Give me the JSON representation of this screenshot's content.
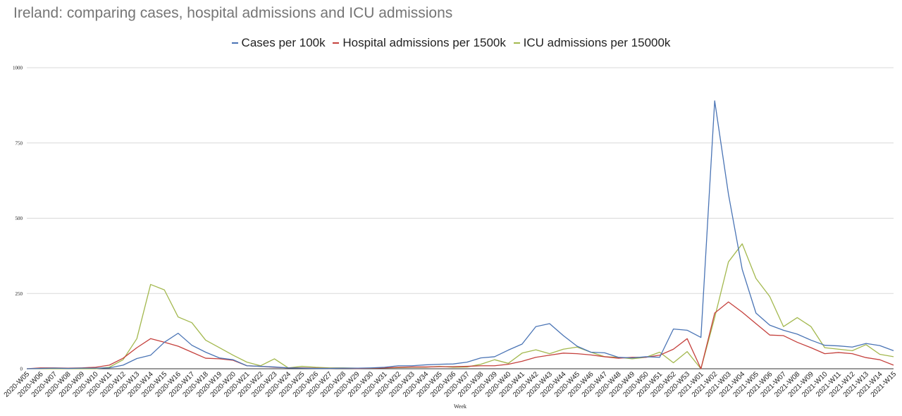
{
  "chart_data": {
    "type": "line",
    "title": "Ireland: comparing cases, hospital admissions and ICU admissions",
    "xlabel": "Week",
    "ylabel": "",
    "ylim": [
      0,
      1000
    ],
    "yticks": [
      "1000",
      "750",
      "500",
      "250",
      "0"
    ],
    "grid": true,
    "legend_position": "top",
    "x": [
      "2020-W05",
      "2020-W06",
      "2020-W07",
      "2020-W08",
      "2020-W09",
      "2020-W10",
      "2020-W11",
      "2020-W12",
      "2020-W13",
      "2020-W14",
      "2020-W15",
      "2020-W16",
      "2020-W17",
      "2020-W18",
      "2020-W19",
      "2020-W20",
      "2020-W21",
      "2020-W22",
      "2020-W23",
      "2020-W24",
      "2020-W25",
      "2020-W26",
      "2020-W27",
      "2020-W28",
      "2020-W29",
      "2020-W30",
      "2020-W31",
      "2020-W32",
      "2020-W33",
      "2020-W34",
      "2020-W35",
      "2020-W36",
      "2020-W37",
      "2020-W38",
      "2020-W39",
      "2020-W40",
      "2020-W41",
      "2020-W42",
      "2020-W43",
      "2020-W44",
      "2020-W45",
      "2020-W46",
      "2020-W47",
      "2020-W48",
      "2020-W49",
      "2020-W50",
      "2020-W51",
      "2020-W52",
      "2020-W53",
      "2021-W01",
      "2021-W02",
      "2021-W03",
      "2021-W04",
      "2021-W05",
      "2021-W06",
      "2021-W07",
      "2021-W08",
      "2021-W09",
      "2021-W10",
      "2021-W11",
      "2021-W12",
      "2021-W13",
      "2021-W14",
      "2021-W15"
    ],
    "series": [
      {
        "name": "Cases per 100k",
        "color": "#4a74b5",
        "values": [
          0,
          1,
          2,
          1,
          2,
          2,
          3,
          12,
          34,
          45,
          88,
          118,
          78,
          55,
          36,
          30,
          10,
          8,
          6,
          3,
          2,
          1,
          1,
          2,
          2,
          3,
          5,
          10,
          10,
          13,
          15,
          16,
          22,
          36,
          40,
          62,
          82,
          140,
          150,
          110,
          75,
          55,
          53,
          38,
          36,
          40,
          38,
          132,
          128,
          104,
          890,
          580,
          330,
          185,
          145,
          128,
          115,
          95,
          78,
          76,
          72,
          84,
          77,
          60
        ],
        "dash": ""
      },
      {
        "name": "Hospital admissions per 1500k",
        "color": "#c5413d",
        "values": [
          0,
          3,
          3,
          2,
          3,
          5,
          12,
          35,
          70,
          100,
          88,
          75,
          55,
          35,
          33,
          28,
          10,
          8,
          5,
          3,
          3,
          2,
          1,
          2,
          1,
          2,
          3,
          5,
          6,
          6,
          7,
          7,
          8,
          10,
          10,
          15,
          25,
          38,
          45,
          52,
          50,
          46,
          40,
          35,
          38,
          38,
          45,
          65,
          100,
          0,
          185,
          222,
          188,
          150,
          112,
          110,
          88,
          70,
          50,
          54,
          50,
          37,
          30,
          12
        ],
        "dash": ""
      },
      {
        "name": "ICU admissions per 15000k",
        "color": "#a3b84e",
        "values": [
          0,
          0,
          0,
          0,
          0,
          0,
          5,
          30,
          100,
          280,
          262,
          172,
          153,
          95,
          70,
          45,
          22,
          10,
          33,
          3,
          8,
          5,
          3,
          3,
          2,
          2,
          3,
          4,
          5,
          5,
          8,
          5,
          6,
          15,
          30,
          18,
          52,
          63,
          50,
          65,
          72,
          55,
          40,
          38,
          33,
          38,
          55,
          20,
          57,
          0,
          170,
          355,
          415,
          300,
          240,
          140,
          170,
          140,
          70,
          65,
          60,
          80,
          48,
          40
        ],
        "dash": ""
      }
    ]
  }
}
